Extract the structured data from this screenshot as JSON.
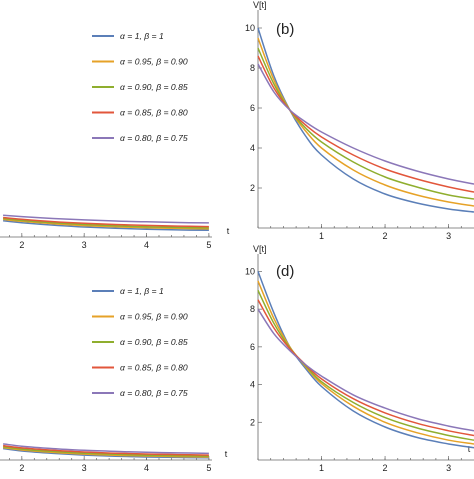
{
  "colors": [
    "#5b7fb8",
    "#e6a227",
    "#8fae2e",
    "#e2563b",
    "#8b77b8"
  ],
  "legend": [
    "α = 1,  β = 1",
    "α = 0.95,  β = 0.90",
    "α = 0.90,  β = 0.85",
    "α = 0.85,  β = 0.80",
    "α = 0.80,  β = 0.75"
  ],
  "chart_data": [
    {
      "panel": "a",
      "type": "line",
      "visible_label": "",
      "xlabel": "t",
      "ylabel": "",
      "xlim": [
        1.65,
        5.05
      ],
      "ylim": [
        0,
        10
      ],
      "x_ticks": [
        "2",
        "3",
        "4",
        "5"
      ],
      "x": [
        1.7,
        2.0,
        2.5,
        3.0,
        3.5,
        4.0,
        4.5,
        5.0
      ],
      "series": [
        {
          "values": [
            1.7,
            1.5,
            1.25,
            1.05,
            0.92,
            0.82,
            0.75,
            0.7
          ]
        },
        {
          "values": [
            1.85,
            1.65,
            1.4,
            1.2,
            1.07,
            0.97,
            0.9,
            0.85
          ]
        },
        {
          "values": [
            1.95,
            1.75,
            1.5,
            1.32,
            1.18,
            1.08,
            1.01,
            0.96
          ]
        },
        {
          "values": [
            2.05,
            1.87,
            1.62,
            1.45,
            1.32,
            1.22,
            1.15,
            1.1
          ]
        },
        {
          "values": [
            2.3,
            2.15,
            1.95,
            1.8,
            1.68,
            1.6,
            1.53,
            1.48
          ]
        }
      ]
    },
    {
      "panel": "b",
      "type": "line",
      "visible_label": "(b)",
      "xlabel": "",
      "ylabel": "V[t]",
      "xlim": [
        0,
        3.4
      ],
      "ylim": [
        0,
        10.5
      ],
      "x_ticks": [
        "1",
        "2",
        "3"
      ],
      "y_ticks": [
        "2",
        "4",
        "6",
        "8",
        "10"
      ],
      "x": [
        0,
        0.25,
        0.5,
        0.75,
        1.0,
        1.5,
        2.0,
        2.5,
        3.0,
        3.4
      ],
      "series": [
        {
          "values": [
            10.0,
            7.6,
            5.9,
            4.6,
            3.65,
            2.45,
            1.7,
            1.25,
            0.95,
            0.8
          ]
        },
        {
          "values": [
            9.5,
            7.4,
            5.9,
            4.85,
            4.0,
            2.9,
            2.15,
            1.65,
            1.3,
            1.1
          ]
        },
        {
          "values": [
            9.0,
            7.2,
            5.9,
            5.0,
            4.3,
            3.3,
            2.55,
            2.05,
            1.65,
            1.45
          ]
        },
        {
          "values": [
            8.6,
            7.0,
            5.9,
            5.15,
            4.55,
            3.65,
            2.95,
            2.45,
            2.05,
            1.8
          ]
        },
        {
          "values": [
            8.2,
            6.8,
            5.9,
            5.3,
            4.8,
            4.0,
            3.35,
            2.85,
            2.45,
            2.2
          ]
        }
      ]
    },
    {
      "panel": "c",
      "type": "line",
      "visible_label": "",
      "xlabel": "t",
      "ylabel": "",
      "xlim": [
        1.65,
        5.05
      ],
      "ylim": [
        0,
        10
      ],
      "x_ticks": [
        "2",
        "3",
        "4",
        "5"
      ],
      "x": [
        1.7,
        2.0,
        2.5,
        3.0,
        3.5,
        4.0,
        4.5,
        5.0
      ],
      "series": [
        {
          "values": [
            1.2,
            0.95,
            0.7,
            0.52,
            0.4,
            0.32,
            0.27,
            0.23
          ]
        },
        {
          "values": [
            1.3,
            1.05,
            0.8,
            0.62,
            0.5,
            0.42,
            0.36,
            0.32
          ]
        },
        {
          "values": [
            1.4,
            1.15,
            0.9,
            0.72,
            0.6,
            0.51,
            0.45,
            0.41
          ]
        },
        {
          "values": [
            1.52,
            1.27,
            1.02,
            0.84,
            0.72,
            0.63,
            0.57,
            0.52
          ]
        },
        {
          "values": [
            1.7,
            1.45,
            1.2,
            1.02,
            0.9,
            0.81,
            0.75,
            0.7
          ]
        }
      ]
    },
    {
      "panel": "d",
      "type": "line",
      "visible_label": "(d)",
      "xlabel": "t",
      "ylabel": "V[t]",
      "xlim": [
        0,
        3.4
      ],
      "ylim": [
        0,
        10.5
      ],
      "x_ticks": [
        "1",
        "2",
        "3"
      ],
      "y_ticks": [
        "2",
        "4",
        "6",
        "8",
        "10"
      ],
      "x": [
        0,
        0.25,
        0.5,
        0.75,
        1.0,
        1.5,
        2.0,
        2.5,
        3.0,
        3.4
      ],
      "series": [
        {
          "values": [
            10.0,
            7.8,
            6.0,
            4.85,
            3.9,
            2.6,
            1.75,
            1.2,
            0.85,
            0.65
          ]
        },
        {
          "values": [
            9.5,
            7.5,
            6.0,
            4.95,
            4.05,
            2.85,
            2.0,
            1.45,
            1.05,
            0.85
          ]
        },
        {
          "values": [
            9.0,
            7.25,
            5.95,
            5.0,
            4.15,
            3.05,
            2.25,
            1.7,
            1.3,
            1.05
          ]
        },
        {
          "values": [
            8.5,
            7.0,
            5.9,
            5.05,
            4.3,
            3.25,
            2.5,
            1.95,
            1.55,
            1.3
          ]
        },
        {
          "values": [
            8.0,
            6.7,
            5.8,
            5.05,
            4.45,
            3.45,
            2.75,
            2.2,
            1.8,
            1.55
          ]
        }
      ]
    }
  ]
}
